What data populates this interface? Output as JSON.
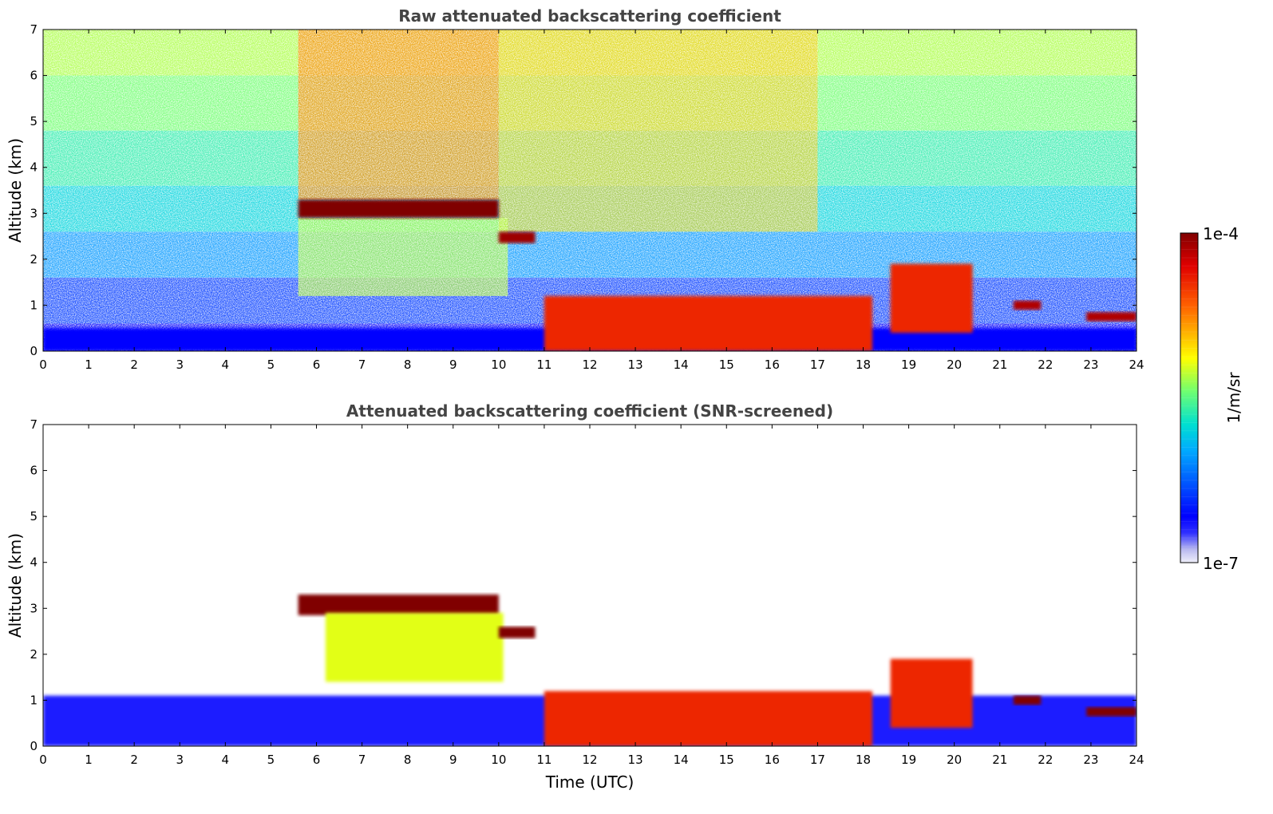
{
  "chart_data": [
    {
      "type": "heatmap",
      "title": "Raw attenuated backscattering coefficient",
      "xlabel": "",
      "ylabel": "Altitude (km)",
      "xlim": [
        0,
        24
      ],
      "ylim": [
        0,
        7
      ],
      "xticks": [
        "0",
        "1",
        "2",
        "3",
        "4",
        "5",
        "6",
        "7",
        "8",
        "9",
        "10",
        "11",
        "12",
        "13",
        "14",
        "15",
        "16",
        "17",
        "18",
        "19",
        "20",
        "21",
        "22",
        "23",
        "24"
      ],
      "yticks": [
        "0",
        "1",
        "2",
        "3",
        "4",
        "5",
        "6",
        "7"
      ],
      "features": [
        {
          "name": "surface layer",
          "x_start": 0,
          "x_end": 24,
          "y_start": 0,
          "y_end": 0.5,
          "level": 0.16
        },
        {
          "name": "cloud layer",
          "x_start": 5.6,
          "x_end": 10,
          "y_start": 2.9,
          "y_end": 3.3,
          "level": 1.0
        },
        {
          "name": "cloud layer",
          "x_start": 10,
          "x_end": 10.8,
          "y_start": 2.35,
          "y_end": 2.6,
          "level": 0.97
        },
        {
          "name": "low cloud",
          "x_start": 11,
          "x_end": 18.2,
          "y_start": 0,
          "y_end": 1.2,
          "level": 0.85
        },
        {
          "name": "low cloud",
          "x_start": 18.6,
          "x_end": 20.4,
          "y_start": 0.4,
          "y_end": 1.9,
          "level": 0.85
        },
        {
          "name": "low cloud",
          "x_start": 21.3,
          "x_end": 21.9,
          "y_start": 0.9,
          "y_end": 1.1,
          "level": 0.95
        },
        {
          "name": "low cloud",
          "x_start": 22.9,
          "x_end": 24,
          "y_start": 0.65,
          "y_end": 0.85,
          "level": 0.95
        }
      ]
    },
    {
      "type": "heatmap",
      "title": "Attenuated backscattering coefficient (SNR-screened)",
      "xlabel": "Time (UTC)",
      "ylabel": "Altitude (km)",
      "xlim": [
        0,
        24
      ],
      "ylim": [
        0,
        7
      ],
      "xticks": [
        "0",
        "1",
        "2",
        "3",
        "4",
        "5",
        "6",
        "7",
        "8",
        "9",
        "10",
        "11",
        "12",
        "13",
        "14",
        "15",
        "16",
        "17",
        "18",
        "19",
        "20",
        "21",
        "22",
        "23",
        "24"
      ],
      "yticks": [
        "0",
        "1",
        "2",
        "3",
        "4",
        "5",
        "6",
        "7"
      ],
      "features": [
        {
          "name": "surface layer",
          "x_start": 0,
          "x_end": 24,
          "y_start": 0,
          "y_end": 1.1,
          "level": 0.1
        },
        {
          "name": "cloud layer",
          "x_start": 5.6,
          "x_end": 10,
          "y_start": 2.85,
          "y_end": 3.3,
          "level": 1.0
        },
        {
          "name": "virga",
          "x_start": 6.2,
          "x_end": 10.1,
          "y_start": 1.4,
          "y_end": 2.9,
          "level": 0.6
        },
        {
          "name": "cloud layer",
          "x_start": 10,
          "x_end": 10.8,
          "y_start": 2.35,
          "y_end": 2.6,
          "level": 1.0
        },
        {
          "name": "low cloud",
          "x_start": 11,
          "x_end": 18.2,
          "y_start": 0,
          "y_end": 1.2,
          "level": 0.85
        },
        {
          "name": "low cloud",
          "x_start": 18.6,
          "x_end": 20.4,
          "y_start": 0.4,
          "y_end": 1.9,
          "level": 0.85
        },
        {
          "name": "low cloud",
          "x_start": 21.3,
          "x_end": 21.9,
          "y_start": 0.9,
          "y_end": 1.1,
          "level": 1.0
        },
        {
          "name": "low cloud",
          "x_start": 22.9,
          "x_end": 24,
          "y_start": 0.65,
          "y_end": 0.85,
          "level": 1.0
        }
      ]
    }
  ],
  "colorbar": {
    "max_label": "1e-4",
    "min_label": "1e-7",
    "label": "1/m/sr",
    "colormap": "jet",
    "min_color": "#e8e8f8",
    "max_color": "#800000"
  }
}
